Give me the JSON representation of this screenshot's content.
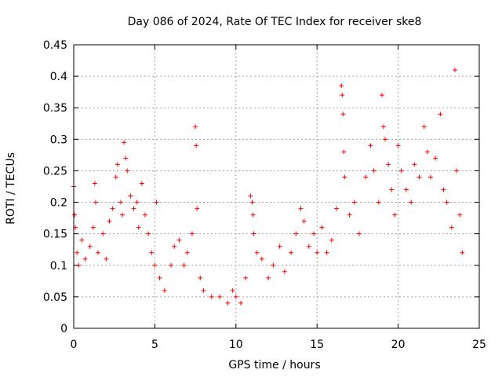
{
  "chart_data": {
    "type": "scatter",
    "title": "Day 086 of 2024, Rate Of TEC Index for receiver ske8",
    "xlabel": "GPS time / hours",
    "ylabel": "ROTI / TECUs",
    "xlim": [
      0,
      25
    ],
    "ylim": [
      0,
      0.45
    ],
    "xticks": [
      0,
      5,
      10,
      15,
      20,
      25
    ],
    "xtick_labels": [
      "0",
      "5",
      "10",
      "15",
      "20",
      "25"
    ],
    "yticks": [
      0,
      0.05,
      0.1,
      0.15,
      0.2,
      0.25,
      0.3,
      0.35,
      0.4,
      0.45
    ],
    "ytick_labels": [
      "0",
      "0.05",
      "0.1",
      "0.15",
      "0.2",
      "0.25",
      "0.3",
      "0.35",
      "0.4",
      "0.45"
    ],
    "grid": true,
    "marker": "+",
    "series": [
      {
        "name": "ROTI",
        "color": "#ff0000",
        "points": [
          [
            0.0,
            0.225
          ],
          [
            0.05,
            0.18
          ],
          [
            0.1,
            0.16
          ],
          [
            0.2,
            0.12
          ],
          [
            0.3,
            0.1
          ],
          [
            0.5,
            0.14
          ],
          [
            0.7,
            0.11
          ],
          [
            1.0,
            0.13
          ],
          [
            1.2,
            0.16
          ],
          [
            1.3,
            0.23
          ],
          [
            1.35,
            0.2
          ],
          [
            1.5,
            0.12
          ],
          [
            1.8,
            0.15
          ],
          [
            2.0,
            0.11
          ],
          [
            2.2,
            0.17
          ],
          [
            2.4,
            0.19
          ],
          [
            2.6,
            0.24
          ],
          [
            2.7,
            0.26
          ],
          [
            2.9,
            0.2
          ],
          [
            3.0,
            0.18
          ],
          [
            3.1,
            0.295
          ],
          [
            3.2,
            0.27
          ],
          [
            3.3,
            0.25
          ],
          [
            3.5,
            0.21
          ],
          [
            3.7,
            0.19
          ],
          [
            3.9,
            0.2
          ],
          [
            4.0,
            0.16
          ],
          [
            4.2,
            0.23
          ],
          [
            4.4,
            0.18
          ],
          [
            4.6,
            0.15
          ],
          [
            4.8,
            0.12
          ],
          [
            5.0,
            0.1
          ],
          [
            5.1,
            0.2
          ],
          [
            5.3,
            0.08
          ],
          [
            5.6,
            0.06
          ],
          [
            6.0,
            0.1
          ],
          [
            6.2,
            0.13
          ],
          [
            6.5,
            0.14
          ],
          [
            6.8,
            0.1
          ],
          [
            7.0,
            0.12
          ],
          [
            7.3,
            0.15
          ],
          [
            7.5,
            0.32
          ],
          [
            7.55,
            0.29
          ],
          [
            7.6,
            0.19
          ],
          [
            7.8,
            0.08
          ],
          [
            8.0,
            0.06
          ],
          [
            8.5,
            0.05
          ],
          [
            9.0,
            0.05
          ],
          [
            9.5,
            0.04
          ],
          [
            9.8,
            0.06
          ],
          [
            10.0,
            0.05
          ],
          [
            10.3,
            0.04
          ],
          [
            10.6,
            0.08
          ],
          [
            10.9,
            0.21
          ],
          [
            11.0,
            0.2
          ],
          [
            11.05,
            0.18
          ],
          [
            11.1,
            0.15
          ],
          [
            11.3,
            0.12
          ],
          [
            11.6,
            0.11
          ],
          [
            12.0,
            0.08
          ],
          [
            12.3,
            0.1
          ],
          [
            12.7,
            0.13
          ],
          [
            13.0,
            0.09
          ],
          [
            13.4,
            0.12
          ],
          [
            13.7,
            0.15
          ],
          [
            14.0,
            0.19
          ],
          [
            14.2,
            0.17
          ],
          [
            14.5,
            0.13
          ],
          [
            14.8,
            0.15
          ],
          [
            15.0,
            0.12
          ],
          [
            15.3,
            0.16
          ],
          [
            15.6,
            0.12
          ],
          [
            15.9,
            0.14
          ],
          [
            16.2,
            0.19
          ],
          [
            16.5,
            0.385
          ],
          [
            16.55,
            0.37
          ],
          [
            16.6,
            0.34
          ],
          [
            16.65,
            0.28
          ],
          [
            16.7,
            0.24
          ],
          [
            17.0,
            0.18
          ],
          [
            17.3,
            0.2
          ],
          [
            17.6,
            0.15
          ],
          [
            18.0,
            0.24
          ],
          [
            18.3,
            0.29
          ],
          [
            18.5,
            0.25
          ],
          [
            18.8,
            0.2
          ],
          [
            19.0,
            0.37
          ],
          [
            19.1,
            0.32
          ],
          [
            19.2,
            0.3
          ],
          [
            19.4,
            0.26
          ],
          [
            19.6,
            0.22
          ],
          [
            19.8,
            0.18
          ],
          [
            20.0,
            0.29
          ],
          [
            20.2,
            0.25
          ],
          [
            20.5,
            0.22
          ],
          [
            20.8,
            0.2
          ],
          [
            21.0,
            0.26
          ],
          [
            21.3,
            0.24
          ],
          [
            21.6,
            0.32
          ],
          [
            21.8,
            0.28
          ],
          [
            22.0,
            0.24
          ],
          [
            22.3,
            0.27
          ],
          [
            22.6,
            0.34
          ],
          [
            22.8,
            0.22
          ],
          [
            23.0,
            0.2
          ],
          [
            23.3,
            0.16
          ],
          [
            23.5,
            0.41
          ],
          [
            23.6,
            0.25
          ],
          [
            23.8,
            0.18
          ],
          [
            23.95,
            0.12
          ]
        ]
      }
    ]
  }
}
